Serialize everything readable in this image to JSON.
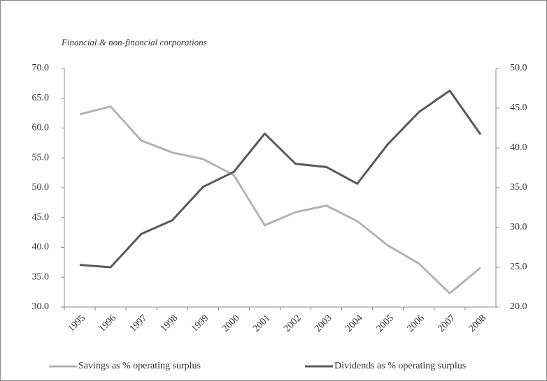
{
  "chart_data": {
    "type": "line",
    "subtitle": "Financial & non-financial corporations",
    "categories": [
      "1995",
      "1996",
      "1997",
      "1998",
      "1999",
      "2000",
      "2001",
      "2002",
      "2003",
      "2004",
      "2005",
      "2006",
      "2007",
      "2008"
    ],
    "series": [
      {
        "name": "Savings as % operating surplus",
        "color": "#b3b3b3",
        "axis": "y",
        "values": [
          62.3,
          63.6,
          57.9,
          55.9,
          54.8,
          52.1,
          43.7,
          45.9,
          47.0,
          44.4,
          40.3,
          37.3,
          32.3,
          36.6
        ]
      },
      {
        "name": "Dividends as % operating surplus",
        "color": "#595959",
        "axis": "y2",
        "values": [
          25.3,
          25.0,
          29.2,
          30.9,
          35.1,
          37.0,
          41.8,
          38.0,
          37.6,
          35.5,
          40.5,
          44.5,
          47.2,
          41.7
        ]
      }
    ],
    "ylim": [
      30,
      70
    ],
    "yticks": [
      {
        "value": 30,
        "label": "30.0"
      },
      {
        "value": 35,
        "label": "35.0"
      },
      {
        "value": 40,
        "label": "40.0"
      },
      {
        "value": 45,
        "label": "45.0"
      },
      {
        "value": 50,
        "label": "50.0"
      },
      {
        "value": 55,
        "label": "55.0"
      },
      {
        "value": 60,
        "label": "60.0"
      },
      {
        "value": 65,
        "label": "65.0"
      },
      {
        "value": 70,
        "label": "70.0"
      }
    ],
    "y2lim": [
      20,
      50
    ],
    "y2ticks": [
      {
        "value": 20,
        "label": "20.0"
      },
      {
        "value": 25,
        "label": "25.0"
      },
      {
        "value": 30,
        "label": "30.0"
      },
      {
        "value": 35,
        "label": "35.0"
      },
      {
        "value": 40,
        "label": "40.0"
      },
      {
        "value": 45,
        "label": "45.0"
      },
      {
        "value": 50,
        "label": "50.0"
      }
    ],
    "legend": "bottom"
  }
}
